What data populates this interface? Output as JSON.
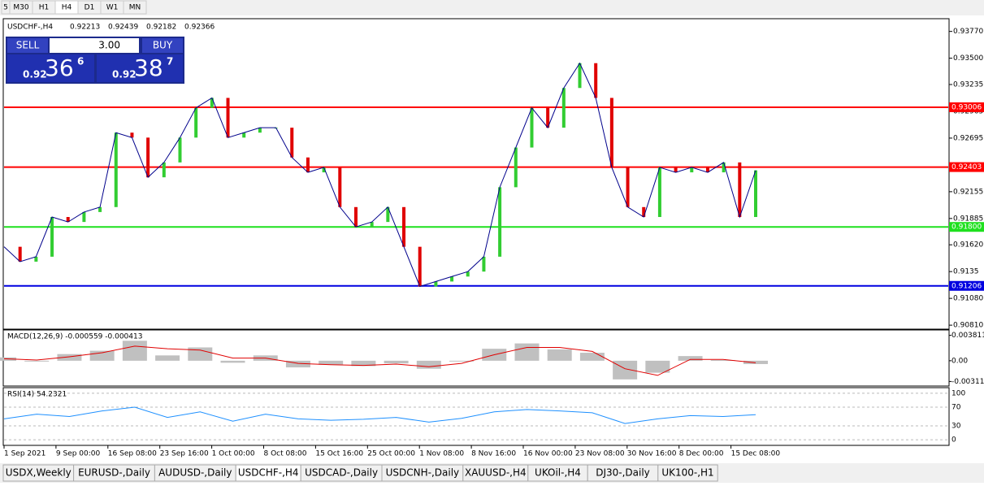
{
  "toolbar": {
    "timeframes": [
      "5",
      "M30",
      "H1",
      "H4",
      "D1",
      "W1",
      "MN"
    ]
  },
  "trade_panel": {
    "sell": "SELL",
    "lots": "3.00",
    "buy": "BUY",
    "bid": {
      "big": "0.92",
      "main": "36",
      "pip": "6"
    },
    "ask": {
      "big": "0.92",
      "main": "38",
      "pip": "7"
    }
  },
  "chart_data": [
    {
      "type": "candlestick",
      "title": "USDCHF-,H4",
      "quote": [
        0.92213,
        0.92439,
        0.92182,
        0.92366
      ],
      "x_labels": [
        "1 Sep 2021",
        "9 Sep 00:00",
        "16 Sep 08:00",
        "23 Sep 16:00",
        "1 Oct 00:00",
        "8 Oct 08:00",
        "15 Oct 16:00",
        "25 Oct 00:00",
        "1 Nov 08:00",
        "8 Nov 16:00",
        "16 Nov 00:00",
        "23 Nov 08:00",
        "30 Nov 16:00",
        "8 Dec 00:00",
        "15 Dec 08:00"
      ],
      "closes": [
        0.916,
        0.9145,
        0.915,
        0.919,
        0.9185,
        0.9195,
        0.92,
        0.9275,
        0.927,
        0.923,
        0.9245,
        0.927,
        0.93,
        0.931,
        0.927,
        0.9275,
        0.928,
        0.928,
        0.925,
        0.9235,
        0.924,
        0.92,
        0.918,
        0.9185,
        0.92,
        0.916,
        0.912,
        0.9125,
        0.913,
        0.9135,
        0.915,
        0.922,
        0.926,
        0.93,
        0.928,
        0.932,
        0.9345,
        0.931,
        0.924,
        0.92,
        0.919,
        0.924,
        0.9235,
        0.924,
        0.9235,
        0.9245,
        0.919,
        0.9237
      ],
      "up_color": "#32cd32",
      "down_color": "#e00000",
      "line_color": "#00008b",
      "ylim": [
        0.9077,
        0.9389
      ],
      "yticks": [
        {
          "value": 0.9377,
          "label": "0.93770"
        },
        {
          "value": 0.935,
          "label": "0.93500"
        },
        0.93235,
        0.92965,
        0.92695,
        0.92155,
        0.91885,
        {
          "value": 0.9162,
          "label": "0.91620"
        },
        0.9135,
        {
          "value": 0.9108,
          "label": "0.91080"
        },
        {
          "value": 0.9081,
          "label": "0.90810"
        }
      ],
      "levels": [
        {
          "value": 0.93006,
          "color": "#ff0000"
        },
        {
          "value": 0.92403,
          "color": "#ff0000"
        },
        {
          "value": 0.918,
          "label": "0.91800",
          "color": "#1ee01e"
        },
        {
          "value": 0.91206,
          "color": "#0000e0"
        }
      ]
    },
    {
      "type": "macd",
      "title": "MACD(12,26,9) -0.000559 -0.000413",
      "series": [
        {
          "values": [
            0.0005,
            0.0,
            0.001,
            0.0015,
            0.003,
            0.0008,
            0.002,
            -0.0003,
            0.0008,
            -0.001,
            -0.0006,
            -0.0008,
            -0.0004,
            -0.0012,
            0.0,
            0.0018,
            0.0026,
            0.0017,
            0.0012,
            -0.0028,
            -0.0018,
            0.0007,
            0.0001,
            -0.0005
          ],
          "color": "#c0c0c0"
        },
        {
          "values": [
            0.0003,
            0.0001,
            0.0006,
            0.0012,
            0.0022,
            0.0018,
            0.0016,
            0.0004,
            0.0004,
            -0.0004,
            -0.0006,
            -0.0007,
            -0.0005,
            -0.0009,
            -0.0004,
            0.0009,
            0.002,
            0.002,
            0.0014,
            -0.0012,
            -0.0022,
            0.0002,
            0.0002,
            -0.0003
          ],
          "color": "#e00000"
        }
      ],
      "ylim": [
        -0.0038,
        0.0045
      ],
      "yticks": [
        0.003811,
        {
          "value": 0,
          "label": "0.00"
        },
        -0.003115
      ]
    },
    {
      "type": "line",
      "title": "RSI(14) 54.2321",
      "values": [
        45,
        55,
        50,
        62,
        70,
        48,
        60,
        40,
        55,
        45,
        42,
        44,
        48,
        38,
        46,
        60,
        65,
        62,
        58,
        35,
        45,
        52,
        50,
        54
      ],
      "color": "#1e90ff",
      "ylim": [
        -12,
        112
      ],
      "yticks": [
        100,
        70,
        30,
        0
      ]
    }
  ],
  "tabs": [
    "USDX,Weekly",
    "EURUSD-,Daily",
    "AUDUSD-,Daily",
    "USDCHF-,H4",
    "USDCAD-,Daily",
    "USDCNH-,Daily",
    "XAUUSD-,H4",
    "UKOil-,H4",
    "DJ30-,Daily",
    "UK100-,H1"
  ],
  "active_tab": 3
}
